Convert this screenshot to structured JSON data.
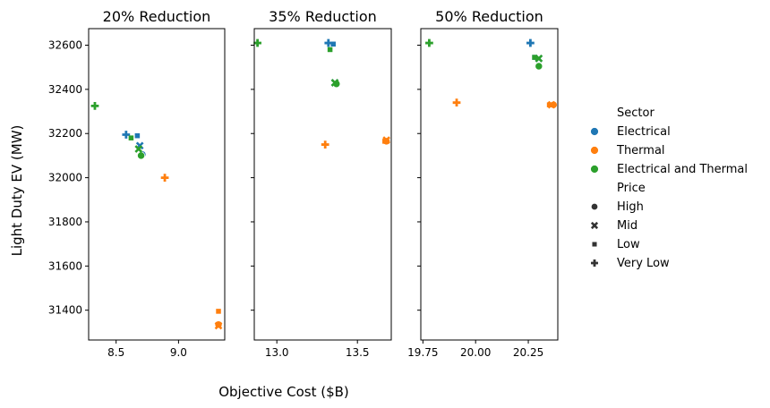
{
  "chart_data": {
    "type": "scatter",
    "xlabel": "Objective Cost ($B)",
    "ylabel": "Light Duty EV (MW)",
    "ylim": [
      31265,
      32675
    ],
    "yticks": [
      31400,
      31600,
      31800,
      32000,
      32200,
      32400,
      32600
    ],
    "grid": false,
    "legend_placement": "right",
    "legend": {
      "hue_title": "Sector",
      "hue": [
        {
          "label": "Electrical",
          "color": "#1f77b4"
        },
        {
          "label": "Thermal",
          "color": "#ff7f0e"
        },
        {
          "label": "Electrical and Thermal",
          "color": "#2ca02c"
        }
      ],
      "style_title": "Price",
      "style": [
        {
          "label": "High",
          "marker": "circle"
        },
        {
          "label": "Mid",
          "marker": "x"
        },
        {
          "label": "Low",
          "marker": "square"
        },
        {
          "label": "Very Low",
          "marker": "plus"
        }
      ]
    },
    "panels": [
      {
        "title": "20% Reduction",
        "xlim": [
          8.28,
          9.37
        ],
        "xticks": [
          {
            "v": 8.5,
            "label": "8.5"
          },
          {
            "v": 9.0,
            "label": "9.0"
          }
        ],
        "points": [
          {
            "sector": "Electrical",
            "price": "High",
            "x": 8.71,
            "y": 32105
          },
          {
            "sector": "Electrical",
            "price": "Mid",
            "x": 8.69,
            "y": 32145
          },
          {
            "sector": "Electrical",
            "price": "Low",
            "x": 8.67,
            "y": 32190
          },
          {
            "sector": "Electrical",
            "price": "Very Low",
            "x": 8.58,
            "y": 32195
          },
          {
            "sector": "Thermal",
            "price": "High",
            "x": 9.32,
            "y": 31335
          },
          {
            "sector": "Thermal",
            "price": "Mid",
            "x": 9.32,
            "y": 31330
          },
          {
            "sector": "Thermal",
            "price": "Low",
            "x": 9.32,
            "y": 31395
          },
          {
            "sector": "Thermal",
            "price": "Very Low",
            "x": 8.89,
            "y": 32000
          },
          {
            "sector": "Electrical and Thermal",
            "price": "High",
            "x": 8.7,
            "y": 32100
          },
          {
            "sector": "Electrical and Thermal",
            "price": "Mid",
            "x": 8.68,
            "y": 32130
          },
          {
            "sector": "Electrical and Thermal",
            "price": "Low",
            "x": 8.62,
            "y": 32180
          },
          {
            "sector": "Electrical and Thermal",
            "price": "Very Low",
            "x": 8.33,
            "y": 32325
          }
        ]
      },
      {
        "title": "35% Reduction",
        "xlim": [
          12.86,
          13.71
        ],
        "xticks": [
          {
            "v": 13.0,
            "label": "13.0"
          },
          {
            "v": 13.5,
            "label": "13.5"
          }
        ],
        "points": [
          {
            "sector": "Electrical",
            "price": "High",
            "x": 13.37,
            "y": 32425
          },
          {
            "sector": "Electrical",
            "price": "Mid",
            "x": 13.36,
            "y": 32430
          },
          {
            "sector": "Electrical",
            "price": "Low",
            "x": 13.35,
            "y": 32605
          },
          {
            "sector": "Electrical",
            "price": "Very Low",
            "x": 13.32,
            "y": 32610
          },
          {
            "sector": "Thermal",
            "price": "High",
            "x": 13.68,
            "y": 32165
          },
          {
            "sector": "Thermal",
            "price": "Mid",
            "x": 13.68,
            "y": 32170
          },
          {
            "sector": "Thermal",
            "price": "Low",
            "x": 13.67,
            "y": 32165
          },
          {
            "sector": "Thermal",
            "price": "Very Low",
            "x": 13.3,
            "y": 32150
          },
          {
            "sector": "Electrical and Thermal",
            "price": "High",
            "x": 13.37,
            "y": 32425
          },
          {
            "sector": "Electrical and Thermal",
            "price": "Mid",
            "x": 13.36,
            "y": 32430
          },
          {
            "sector": "Electrical and Thermal",
            "price": "Low",
            "x": 13.33,
            "y": 32580
          },
          {
            "sector": "Electrical and Thermal",
            "price": "Very Low",
            "x": 12.88,
            "y": 32610
          }
        ]
      },
      {
        "title": "50% Reduction",
        "xlim": [
          19.74,
          20.39
        ],
        "xticks": [
          {
            "v": 19.75,
            "label": "19.75"
          },
          {
            "v": 20.0,
            "label": "20.00"
          },
          {
            "v": 20.25,
            "label": "20.25"
          }
        ],
        "points": [
          {
            "sector": "Electrical",
            "price": "High",
            "x": 20.3,
            "y": 32505
          },
          {
            "sector": "Electrical",
            "price": "Mid",
            "x": 20.3,
            "y": 32540
          },
          {
            "sector": "Electrical",
            "price": "Low",
            "x": 20.28,
            "y": 32545
          },
          {
            "sector": "Electrical",
            "price": "Very Low",
            "x": 20.26,
            "y": 32610
          },
          {
            "sector": "Thermal",
            "price": "High",
            "x": 20.37,
            "y": 32330
          },
          {
            "sector": "Thermal",
            "price": "Mid",
            "x": 20.36,
            "y": 32330
          },
          {
            "sector": "Thermal",
            "price": "Low",
            "x": 20.35,
            "y": 32330
          },
          {
            "sector": "Thermal",
            "price": "Very Low",
            "x": 19.91,
            "y": 32340
          },
          {
            "sector": "Electrical and Thermal",
            "price": "High",
            "x": 20.3,
            "y": 32505
          },
          {
            "sector": "Electrical and Thermal",
            "price": "Mid",
            "x": 20.3,
            "y": 32540
          },
          {
            "sector": "Electrical and Thermal",
            "price": "Low",
            "x": 20.28,
            "y": 32545
          },
          {
            "sector": "Electrical and Thermal",
            "price": "Very Low",
            "x": 19.78,
            "y": 32610
          }
        ]
      }
    ]
  }
}
